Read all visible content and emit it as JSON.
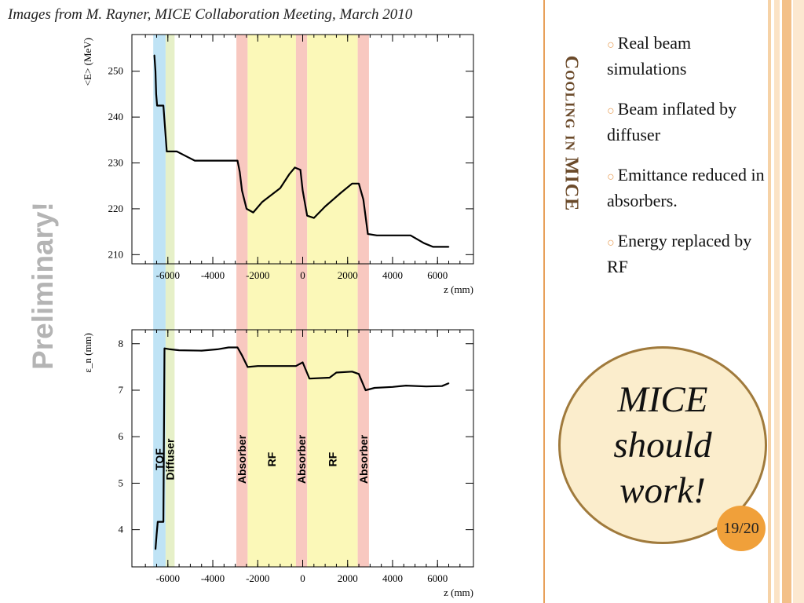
{
  "caption": "Images from M. Rayner, MICE Collaboration Meeting, March 2010",
  "preliminary": "Preliminary!",
  "slide_title": "Cooling in MICE",
  "bullets": [
    {
      "text": "Real beam simulations"
    },
    {
      "text": "Beam inflated by diffuser"
    },
    {
      "text": "Emittance reduced in absorbers."
    },
    {
      "text": "Energy replaced by RF"
    }
  ],
  "callout": "MICE\nshould\nwork!",
  "page_number": "19/20",
  "colors": {
    "accent": "#e8a05a",
    "tof_band": "#bfe3f5",
    "diffuser_band": "#e6f0c8",
    "absorber_band": "#f8c8c0",
    "rf_band": "#fbf8b8"
  },
  "chart_data": [
    {
      "type": "line",
      "title": "",
      "xlabel": "z (mm)",
      "ylabel": "<E> (MeV)",
      "xlim": [
        -7600,
        7600
      ],
      "ylim": [
        208,
        258
      ],
      "xticks": [
        "-6000",
        "-4000",
        "-2000",
        "0",
        "2000",
        "4000",
        "6000"
      ],
      "yticks": [
        "210",
        "220",
        "230",
        "240",
        "250"
      ],
      "series": [
        {
          "points": [
            [
              -6600,
              253.5
            ],
            [
              -6550,
              250
            ],
            [
              -6520,
              245
            ],
            [
              -6480,
              242.5
            ],
            [
              -6200,
              242.5
            ],
            [
              -6050,
              232.5
            ],
            [
              -5600,
              232.5
            ],
            [
              -5200,
              231.5
            ],
            [
              -4800,
              230.5
            ],
            [
              -3500,
              230.5
            ],
            [
              -2900,
              230.5
            ],
            [
              -2800,
              228
            ],
            [
              -2700,
              224
            ],
            [
              -2500,
              220
            ],
            [
              -2200,
              219.2
            ],
            [
              -1800,
              221.5
            ],
            [
              -1000,
              224.5
            ],
            [
              -600,
              227.5
            ],
            [
              -350,
              229
            ],
            [
              -100,
              228.5
            ],
            [
              0,
              224
            ],
            [
              200,
              218.5
            ],
            [
              500,
              218
            ],
            [
              1000,
              220.5
            ],
            [
              1700,
              223.5
            ],
            [
              2200,
              225.5
            ],
            [
              2500,
              225.5
            ],
            [
              2700,
              222
            ],
            [
              2900,
              214.5
            ],
            [
              3300,
              214.2
            ],
            [
              4800,
              214.2
            ],
            [
              5400,
              212.5
            ],
            [
              5800,
              211.7
            ],
            [
              6500,
              211.7
            ]
          ]
        }
      ]
    },
    {
      "type": "line",
      "title": "",
      "xlabel": "z (mm)",
      "ylabel": "ε_n (mm)",
      "xlim": [
        -7600,
        7600
      ],
      "ylim": [
        3.2,
        8.3
      ],
      "xticks": [
        "-6000",
        "-4000",
        "-2000",
        "0",
        "2000",
        "4000",
        "6000"
      ],
      "yticks": [
        "4",
        "5",
        "6",
        "7",
        "8"
      ],
      "series": [
        {
          "points": [
            [
              -6550,
              3.58
            ],
            [
              -6500,
              3.9
            ],
            [
              -6450,
              4.17
            ],
            [
              -6200,
              4.17
            ],
            [
              -6150,
              7.9
            ],
            [
              -5900,
              7.88
            ],
            [
              -5500,
              7.86
            ],
            [
              -4500,
              7.85
            ],
            [
              -3800,
              7.88
            ],
            [
              -3300,
              7.92
            ],
            [
              -2900,
              7.92
            ],
            [
              -2700,
              7.75
            ],
            [
              -2450,
              7.5
            ],
            [
              -2000,
              7.52
            ],
            [
              -300,
              7.52
            ],
            [
              0,
              7.6
            ],
            [
              300,
              7.25
            ],
            [
              1200,
              7.27
            ],
            [
              1500,
              7.38
            ],
            [
              2200,
              7.4
            ],
            [
              2500,
              7.35
            ],
            [
              2800,
              7.0
            ],
            [
              3200,
              7.05
            ],
            [
              4000,
              7.07
            ],
            [
              4600,
              7.1
            ],
            [
              5500,
              7.08
            ],
            [
              6200,
              7.09
            ],
            [
              6500,
              7.15
            ]
          ]
        }
      ]
    }
  ],
  "bands": [
    {
      "label": "TOF",
      "from": -6650,
      "to": -6100,
      "kind": "tof"
    },
    {
      "label": "Diffuser",
      "from": -6100,
      "to": -5700,
      "kind": "diffuser"
    },
    {
      "label": "Absorber",
      "from": -2950,
      "to": -2450,
      "kind": "absorber"
    },
    {
      "label": "RF",
      "from": -2450,
      "to": -300,
      "kind": "rf"
    },
    {
      "label": "Absorber",
      "from": -300,
      "to": 200,
      "kind": "absorber"
    },
    {
      "label": "RF",
      "from": 200,
      "to": 2450,
      "kind": "rf"
    },
    {
      "label": "Absorber",
      "from": 2450,
      "to": 2950,
      "kind": "absorber"
    }
  ]
}
